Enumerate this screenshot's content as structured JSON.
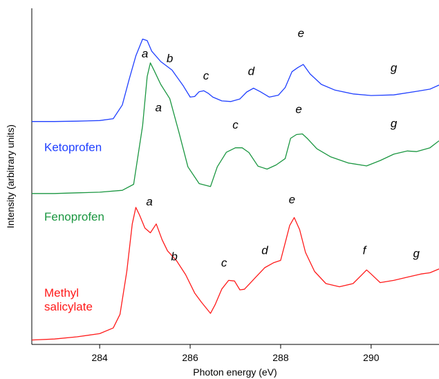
{
  "chart_data": {
    "type": "line",
    "title": "",
    "xlabel": "Photon energy (eV)",
    "ylabel": "Intensity (arbitrary units)",
    "xlim": [
      282.5,
      291.5
    ],
    "ylim": [
      0,
      10.6
    ],
    "xticks": [
      284,
      286,
      288,
      290
    ],
    "grid": false,
    "y_ticks_shown": false,
    "series": [
      {
        "name": "Ketoprofen",
        "color": "#1f3fff",
        "points": [
          [
            282.5,
            7.03
          ],
          [
            283.0,
            7.03
          ],
          [
            283.5,
            7.04
          ],
          [
            284.0,
            7.06
          ],
          [
            284.3,
            7.12
          ],
          [
            284.5,
            7.55
          ],
          [
            284.65,
            8.35
          ],
          [
            284.8,
            9.1
          ],
          [
            284.95,
            9.63
          ],
          [
            285.05,
            9.58
          ],
          [
            285.15,
            9.25
          ],
          [
            285.35,
            8.92
          ],
          [
            285.6,
            8.65
          ],
          [
            285.85,
            8.15
          ],
          [
            286.0,
            7.8
          ],
          [
            286.1,
            7.82
          ],
          [
            286.2,
            7.97
          ],
          [
            286.3,
            8.0
          ],
          [
            286.4,
            7.92
          ],
          [
            286.5,
            7.8
          ],
          [
            286.7,
            7.68
          ],
          [
            286.9,
            7.66
          ],
          [
            287.1,
            7.74
          ],
          [
            287.25,
            7.96
          ],
          [
            287.4,
            8.08
          ],
          [
            287.55,
            7.97
          ],
          [
            287.75,
            7.8
          ],
          [
            287.95,
            7.86
          ],
          [
            288.1,
            8.1
          ],
          [
            288.25,
            8.6
          ],
          [
            288.38,
            8.73
          ],
          [
            288.5,
            8.83
          ],
          [
            288.65,
            8.53
          ],
          [
            288.9,
            8.2
          ],
          [
            289.2,
            8.02
          ],
          [
            289.6,
            7.9
          ],
          [
            290.0,
            7.85
          ],
          [
            290.5,
            7.87
          ],
          [
            291.0,
            7.98
          ],
          [
            291.3,
            8.05
          ],
          [
            291.5,
            8.18
          ]
        ]
      },
      {
        "name": "Fenoprofen",
        "color": "#1a9640",
        "points": [
          [
            282.5,
            4.76
          ],
          [
            283.0,
            4.76
          ],
          [
            283.5,
            4.78
          ],
          [
            284.0,
            4.8
          ],
          [
            284.5,
            4.86
          ],
          [
            284.75,
            5.05
          ],
          [
            284.95,
            6.9
          ],
          [
            285.05,
            8.45
          ],
          [
            285.12,
            8.88
          ],
          [
            285.2,
            8.65
          ],
          [
            285.35,
            8.2
          ],
          [
            285.55,
            7.75
          ],
          [
            285.75,
            6.7
          ],
          [
            285.95,
            5.6
          ],
          [
            286.2,
            5.07
          ],
          [
            286.45,
            4.98
          ],
          [
            286.6,
            5.6
          ],
          [
            286.8,
            6.06
          ],
          [
            287.0,
            6.2
          ],
          [
            287.15,
            6.2
          ],
          [
            287.3,
            6.05
          ],
          [
            287.5,
            5.62
          ],
          [
            287.7,
            5.53
          ],
          [
            287.9,
            5.66
          ],
          [
            288.1,
            5.86
          ],
          [
            288.22,
            6.5
          ],
          [
            288.35,
            6.62
          ],
          [
            288.48,
            6.64
          ],
          [
            288.6,
            6.48
          ],
          [
            288.8,
            6.17
          ],
          [
            289.1,
            5.92
          ],
          [
            289.5,
            5.72
          ],
          [
            289.9,
            5.63
          ],
          [
            290.2,
            5.8
          ],
          [
            290.5,
            6.0
          ],
          [
            290.8,
            6.1
          ],
          [
            291.0,
            6.08
          ],
          [
            291.3,
            6.2
          ],
          [
            291.5,
            6.42
          ]
        ]
      },
      {
        "name": "Methyl salicylate",
        "color": "#ff1a1a",
        "points": [
          [
            282.5,
            0.14
          ],
          [
            283.0,
            0.17
          ],
          [
            283.5,
            0.24
          ],
          [
            284.0,
            0.34
          ],
          [
            284.3,
            0.52
          ],
          [
            284.45,
            0.95
          ],
          [
            284.6,
            2.3
          ],
          [
            284.72,
            3.8
          ],
          [
            284.8,
            4.32
          ],
          [
            284.88,
            4.08
          ],
          [
            285.0,
            3.67
          ],
          [
            285.12,
            3.52
          ],
          [
            285.25,
            3.8
          ],
          [
            285.38,
            3.3
          ],
          [
            285.5,
            2.95
          ],
          [
            285.7,
            2.64
          ],
          [
            285.9,
            2.2
          ],
          [
            286.1,
            1.62
          ],
          [
            286.25,
            1.33
          ],
          [
            286.45,
            0.98
          ],
          [
            286.55,
            1.25
          ],
          [
            286.7,
            1.75
          ],
          [
            286.85,
            2.02
          ],
          [
            286.98,
            2.0
          ],
          [
            287.1,
            1.72
          ],
          [
            287.2,
            1.74
          ],
          [
            287.45,
            2.12
          ],
          [
            287.65,
            2.42
          ],
          [
            287.85,
            2.58
          ],
          [
            288.0,
            2.65
          ],
          [
            288.1,
            3.2
          ],
          [
            288.2,
            3.75
          ],
          [
            288.3,
            4.0
          ],
          [
            288.42,
            3.62
          ],
          [
            288.55,
            2.9
          ],
          [
            288.75,
            2.3
          ],
          [
            289.0,
            1.92
          ],
          [
            289.3,
            1.82
          ],
          [
            289.6,
            1.92
          ],
          [
            289.8,
            2.2
          ],
          [
            289.9,
            2.35
          ],
          [
            290.0,
            2.22
          ],
          [
            290.2,
            1.95
          ],
          [
            290.5,
            2.02
          ],
          [
            290.8,
            2.12
          ],
          [
            291.1,
            2.22
          ],
          [
            291.3,
            2.26
          ],
          [
            291.5,
            2.38
          ]
        ]
      }
    ],
    "annotations": [
      {
        "series": "Ketoprofen",
        "text": "a",
        "x": 285.0,
        "y": 9.05
      },
      {
        "series": "Ketoprofen",
        "text": "b",
        "x": 285.55,
        "y": 8.9
      },
      {
        "series": "Ketoprofen",
        "text": "c",
        "x": 286.35,
        "y": 8.35
      },
      {
        "series": "Ketoprofen",
        "text": "d",
        "x": 287.35,
        "y": 8.5
      },
      {
        "series": "Ketoprofen",
        "text": "e",
        "x": 288.45,
        "y": 9.7
      },
      {
        "series": "Ketoprofen",
        "text": "g",
        "x": 290.5,
        "y": 8.6
      },
      {
        "series": "Fenoprofen",
        "text": "a",
        "x": 285.3,
        "y": 7.35
      },
      {
        "series": "Fenoprofen",
        "text": "c",
        "x": 287.0,
        "y": 6.8
      },
      {
        "series": "Fenoprofen",
        "text": "e",
        "x": 288.4,
        "y": 7.3
      },
      {
        "series": "Fenoprofen",
        "text": "g",
        "x": 290.5,
        "y": 6.85
      },
      {
        "series": "Methyl salicylate",
        "text": "a",
        "x": 285.1,
        "y": 4.38
      },
      {
        "series": "Methyl salicylate",
        "text": "b",
        "x": 285.65,
        "y": 2.65
      },
      {
        "series": "Methyl salicylate",
        "text": "c",
        "x": 286.75,
        "y": 2.45
      },
      {
        "series": "Methyl salicylate",
        "text": "d",
        "x": 287.65,
        "y": 2.85
      },
      {
        "series": "Methyl salicylate",
        "text": "e",
        "x": 288.25,
        "y": 4.45
      },
      {
        "series": "Methyl salicylate",
        "text": "f",
        "x": 289.85,
        "y": 2.85
      },
      {
        "series": "Methyl salicylate",
        "text": "g",
        "x": 291.0,
        "y": 2.75
      }
    ],
    "series_labels": [
      {
        "series": "Ketoprofen",
        "lines": [
          "Ketoprofen"
        ]
      },
      {
        "series": "Fenoprofen",
        "lines": [
          "Fenoprofen"
        ]
      },
      {
        "series": "Methyl salicylate",
        "lines": [
          "Methyl",
          "salicylate"
        ]
      }
    ]
  }
}
